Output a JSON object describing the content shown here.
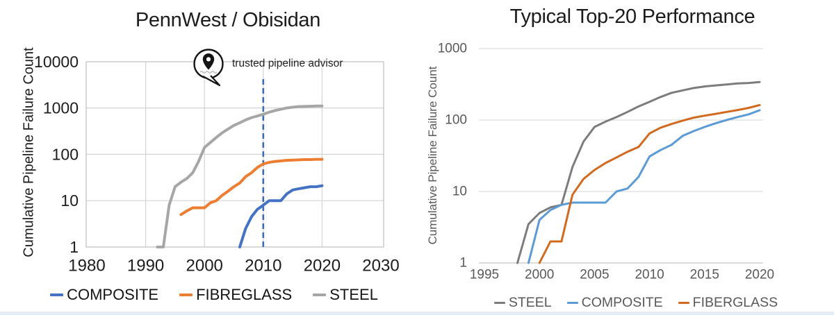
{
  "figure": {
    "background": "#FFFFFF",
    "footer_strip_color": "#E4EDF7"
  },
  "chart_data": [
    {
      "type": "line",
      "title": "PennWest / Obisidan",
      "ylabel": "Cumulative Pipeline Failure Count",
      "xlabel": "",
      "y_scale": "log10",
      "xlim": [
        1980,
        2030
      ],
      "ylim": [
        1,
        10000
      ],
      "x_ticks": [
        "1980",
        "1990",
        "2000",
        "2010",
        "2020",
        "2030"
      ],
      "y_ticks": [
        "1",
        "10",
        "100",
        "1000",
        "10000"
      ],
      "grid": "both",
      "legend_position": "bottom",
      "legend": [
        {
          "label": "COMPOSITE",
          "color": "#4472C4"
        },
        {
          "label": "FIBREGLASS",
          "color": "#ED7D31"
        },
        {
          "label": "STEEL",
          "color": "#A6A6A6"
        }
      ],
      "annotations": {
        "logo_label": "trusted pipeline advisor",
        "dashed_vline_year": 2010,
        "dashed_vline_color": "#3E6CB5"
      },
      "series": [
        {
          "name": "STEEL",
          "color": "#A6A6A6",
          "points": [
            [
              1992,
              1
            ],
            [
              1993,
              1
            ],
            [
              1994,
              8
            ],
            [
              1995,
              20
            ],
            [
              1996,
              25
            ],
            [
              1997,
              30
            ],
            [
              1998,
              40
            ],
            [
              1999,
              70
            ],
            [
              2000,
              140
            ],
            [
              2001,
              180
            ],
            [
              2002,
              230
            ],
            [
              2003,
              290
            ],
            [
              2004,
              350
            ],
            [
              2005,
              420
            ],
            [
              2006,
              480
            ],
            [
              2007,
              550
            ],
            [
              2008,
              620
            ],
            [
              2009,
              670
            ],
            [
              2010,
              730
            ],
            [
              2011,
              810
            ],
            [
              2012,
              880
            ],
            [
              2013,
              940
            ],
            [
              2014,
              1000
            ],
            [
              2015,
              1040
            ],
            [
              2016,
              1070
            ],
            [
              2017,
              1080
            ],
            [
              2018,
              1090
            ],
            [
              2019,
              1100
            ],
            [
              2020,
              1100
            ]
          ]
        },
        {
          "name": "FIBREGLASS",
          "color": "#ED7D31",
          "points": [
            [
              1996,
              5
            ],
            [
              1997,
              6
            ],
            [
              1998,
              7
            ],
            [
              1999,
              7
            ],
            [
              2000,
              7
            ],
            [
              2001,
              9
            ],
            [
              2002,
              10
            ],
            [
              2003,
              13
            ],
            [
              2004,
              16
            ],
            [
              2005,
              20
            ],
            [
              2006,
              24
            ],
            [
              2007,
              33
            ],
            [
              2008,
              40
            ],
            [
              2009,
              52
            ],
            [
              2010,
              62
            ],
            [
              2011,
              67
            ],
            [
              2012,
              70
            ],
            [
              2013,
              72
            ],
            [
              2014,
              74
            ],
            [
              2015,
              75
            ],
            [
              2016,
              76
            ],
            [
              2017,
              77
            ],
            [
              2018,
              77
            ],
            [
              2019,
              78
            ],
            [
              2020,
              78
            ]
          ]
        },
        {
          "name": "COMPOSITE",
          "color": "#4472C4",
          "points": [
            [
              2006,
              1
            ],
            [
              2007,
              2.5
            ],
            [
              2008,
              4.5
            ],
            [
              2009,
              6.5
            ],
            [
              2010,
              8
            ],
            [
              2011,
              10
            ],
            [
              2012,
              10
            ],
            [
              2013,
              10
            ],
            [
              2014,
              14
            ],
            [
              2015,
              17
            ],
            [
              2016,
              18
            ],
            [
              2017,
              19
            ],
            [
              2018,
              20
            ],
            [
              2019,
              20
            ],
            [
              2020,
              21
            ]
          ]
        }
      ]
    },
    {
      "type": "line",
      "title": "Typical Top-20 Performance",
      "ylabel": "Cumulative Pipeline Failure Count",
      "xlabel": "",
      "y_scale": "log10",
      "xlim": [
        1995,
        2020
      ],
      "ylim": [
        1,
        1000
      ],
      "x_ticks": [
        "1995",
        "2000",
        "2005",
        "2010",
        "2015",
        "2020"
      ],
      "y_ticks": [
        "1",
        "10",
        "100",
        "1000"
      ],
      "grid": "horizontal",
      "legend_position": "bottom",
      "legend": [
        {
          "label": "STEEL",
          "color": "#7C7C7C"
        },
        {
          "label": "COMPOSITE",
          "color": "#5B9BD5"
        },
        {
          "label": "FIBERGLASS",
          "color": "#D2691E"
        }
      ],
      "annotations": {},
      "series": [
        {
          "name": "STEEL",
          "color": "#7C7C7C",
          "points": [
            [
              1998,
              1
            ],
            [
              1999,
              3.5
            ],
            [
              2000,
              5
            ],
            [
              2001,
              6
            ],
            [
              2002,
              6.5
            ],
            [
              2003,
              22
            ],
            [
              2004,
              50
            ],
            [
              2005,
              80
            ],
            [
              2006,
              95
            ],
            [
              2007,
              110
            ],
            [
              2008,
              130
            ],
            [
              2009,
              155
            ],
            [
              2010,
              180
            ],
            [
              2011,
              210
            ],
            [
              2012,
              240
            ],
            [
              2013,
              260
            ],
            [
              2014,
              280
            ],
            [
              2015,
              295
            ],
            [
              2016,
              305
            ],
            [
              2017,
              315
            ],
            [
              2018,
              325
            ],
            [
              2019,
              330
            ],
            [
              2020,
              340
            ]
          ]
        },
        {
          "name": "COMPOSITE",
          "color": "#5B9BD5",
          "points": [
            [
              1999,
              1
            ],
            [
              2000,
              4
            ],
            [
              2001,
              5.5
            ],
            [
              2002,
              6.5
            ],
            [
              2003,
              7
            ],
            [
              2004,
              7
            ],
            [
              2005,
              7
            ],
            [
              2006,
              7
            ],
            [
              2007,
              10
            ],
            [
              2008,
              11
            ],
            [
              2009,
              16
            ],
            [
              2010,
              31
            ],
            [
              2011,
              38
            ],
            [
              2012,
              45
            ],
            [
              2013,
              60
            ],
            [
              2014,
              70
            ],
            [
              2015,
              80
            ],
            [
              2016,
              90
            ],
            [
              2017,
              100
            ],
            [
              2018,
              110
            ],
            [
              2019,
              120
            ],
            [
              2020,
              137
            ]
          ]
        },
        {
          "name": "FIBERGLASS",
          "color": "#D2691E",
          "points": [
            [
              2000,
              1
            ],
            [
              2001,
              2
            ],
            [
              2002,
              2
            ],
            [
              2003,
              9
            ],
            [
              2004,
              15
            ],
            [
              2005,
              20
            ],
            [
              2006,
              25
            ],
            [
              2007,
              30
            ],
            [
              2008,
              36
            ],
            [
              2009,
              42
            ],
            [
              2010,
              65
            ],
            [
              2011,
              78
            ],
            [
              2012,
              88
            ],
            [
              2013,
              98
            ],
            [
              2014,
              108
            ],
            [
              2015,
              115
            ],
            [
              2016,
              122
            ],
            [
              2017,
              130
            ],
            [
              2018,
              138
            ],
            [
              2019,
              148
            ],
            [
              2020,
              162
            ]
          ]
        }
      ]
    }
  ]
}
